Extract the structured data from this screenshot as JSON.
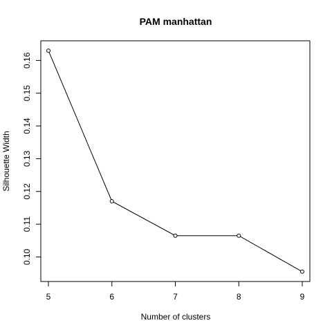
{
  "chart_data": {
    "type": "line",
    "title": "PAM manhattan",
    "xlabel": "Number of clusters",
    "ylabel": "Silhouette Width",
    "x": [
      5,
      6,
      7,
      8,
      9
    ],
    "y": [
      0.163,
      0.117,
      0.1065,
      0.1065,
      0.0955
    ],
    "xlim": [
      4.88,
      9.12
    ],
    "ylim": [
      0.0925,
      0.166
    ],
    "xticks": [
      "5",
      "6",
      "7",
      "8",
      "9"
    ],
    "yticks": [
      "0.10",
      "0.11",
      "0.12",
      "0.13",
      "0.14",
      "0.15",
      "0.16"
    ],
    "marker": "open-circle",
    "line_color": "#000000",
    "grid": false,
    "legend": false
  }
}
